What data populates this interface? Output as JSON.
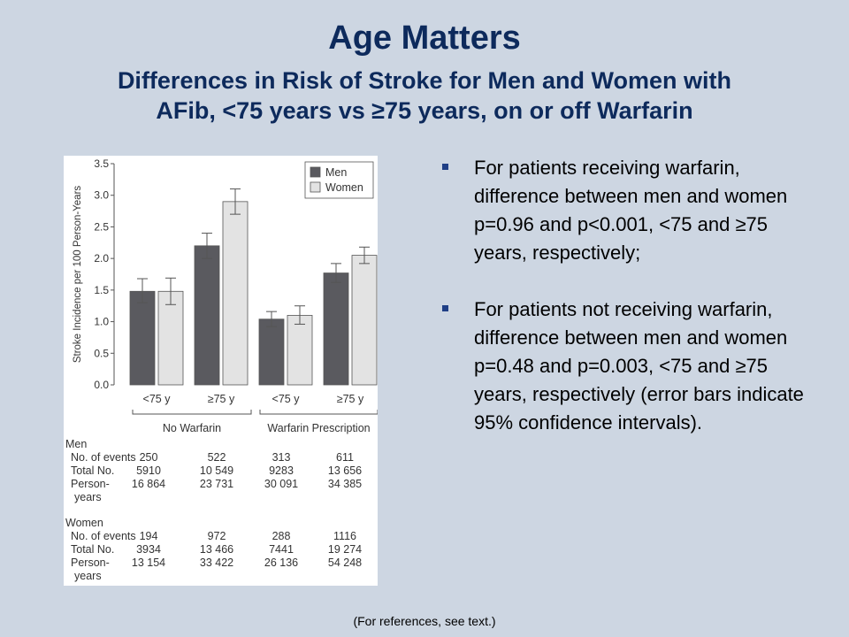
{
  "slide": {
    "title": "Age Matters",
    "subtitle_line1": "Differences in Risk of Stroke for Men and Women with",
    "subtitle_line2": "AFib, <75 years vs ≥75 years, on or off Warfarin",
    "bullets": [
      "For patients receiving warfarin, difference between men and women p=0.96 and p<0.001, <75 and ≥75 years, respectively;",
      "For patients not receiving warfarin, difference between men and women p=0.48 and p=0.003, <75 and ≥75 years, respectively (error bars indicate 95% confidence intervals)."
    ],
    "footer": "(For references, see text.)"
  },
  "colors": {
    "background": "#cdd6e2",
    "title": "#0d2a5c",
    "bullet_marker": "#1f3f86",
    "men_bar": "#5a5a5f",
    "women_bar": "#e3e3e3"
  },
  "chart_data": {
    "type": "bar",
    "ylabel": "Stroke Incidence per 100 Person-Years",
    "xlabel": "",
    "ylim": [
      0,
      3.5
    ],
    "yticks": [
      "0.0",
      "0.5",
      "1.0",
      "1.5",
      "2.0",
      "2.5",
      "3.0",
      "3.5"
    ],
    "categories": [
      "<75 y",
      "≥75 y",
      "<75 y",
      "≥75 y"
    ],
    "groups": [
      {
        "label": "No Warfarin",
        "categories": [
          0,
          1
        ]
      },
      {
        "label": "Warfarin Prescription",
        "categories": [
          2,
          3
        ]
      }
    ],
    "legend_position": "top-right",
    "series": [
      {
        "name": "Men",
        "color": "#5a5a5f",
        "values": [
          1.48,
          2.2,
          1.04,
          1.77
        ],
        "ci_low": [
          1.3,
          2.0,
          0.92,
          1.62
        ],
        "ci_high": [
          1.68,
          2.4,
          1.16,
          1.92
        ]
      },
      {
        "name": "Women",
        "color": "#e3e3e3",
        "values": [
          1.48,
          2.9,
          1.1,
          2.05
        ],
        "ci_low": [
          1.27,
          2.7,
          0.96,
          1.92
        ],
        "ci_high": [
          1.69,
          3.1,
          1.25,
          2.18
        ]
      }
    ]
  },
  "table": {
    "men_header": "Men",
    "women_header": "Women",
    "row_labels": [
      "No. of events",
      "Total No.",
      "Person-",
      "years"
    ],
    "men": {
      "events": [
        "250",
        "522",
        "313",
        "611"
      ],
      "total": [
        "5910",
        "10 549",
        "9283",
        "13 656"
      ],
      "person_years": [
        "16 864",
        "23 731",
        "30 091",
        "34 385"
      ]
    },
    "women": {
      "events": [
        "194",
        "972",
        "288",
        "1116"
      ],
      "total": [
        "3934",
        "13 466",
        "7441",
        "19 274"
      ],
      "person_years": [
        "13 154",
        "33 422",
        "26 136",
        "54 248"
      ]
    }
  }
}
